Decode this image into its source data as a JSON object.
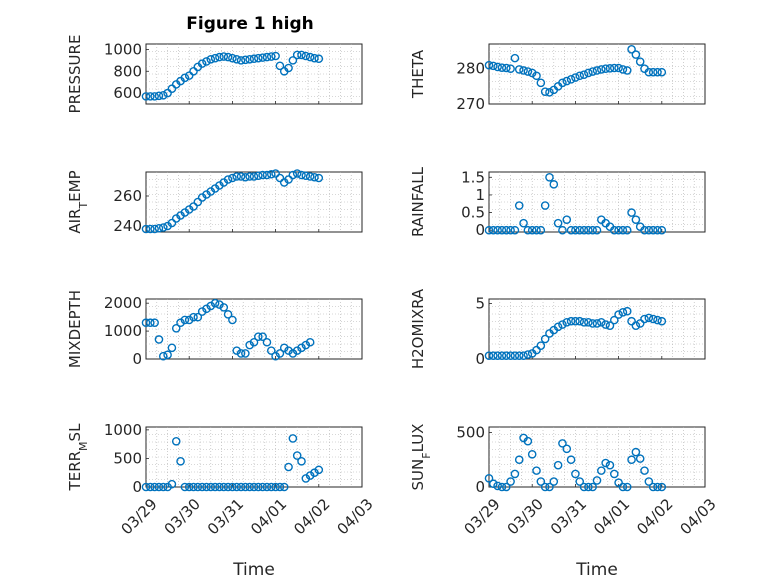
{
  "figure": {
    "title": "Figure 1 high"
  },
  "chart_data": [
    {
      "type": "scatter",
      "title": "Figure 1 high",
      "ylabel": "PRESSURE",
      "xlabel": "",
      "ylim": [
        500,
        1050
      ],
      "yticks": [
        600,
        800,
        1000
      ],
      "xlim": [
        "03/29",
        "04/03"
      ],
      "xticks": [
        "03/29",
        "03/30",
        "03/31",
        "04/01",
        "04/02",
        "04/03"
      ],
      "grid": true,
      "series": [
        {
          "x_days": [
            0.0,
            0.1,
            0.2,
            0.3,
            0.4,
            0.5,
            0.6,
            0.7,
            0.8,
            0.9,
            1.0,
            1.1,
            1.2,
            1.3,
            1.4,
            1.5,
            1.6,
            1.7,
            1.8,
            1.9,
            2.0,
            2.1,
            2.2,
            2.3,
            2.4,
            2.5,
            2.6,
            2.7,
            2.8,
            2.9,
            3.0,
            3.1,
            3.2,
            3.3,
            3.4,
            3.5,
            3.6,
            3.7,
            3.8,
            3.9,
            4.0,
            4.1,
            4.2,
            4.3,
            4.4,
            4.5,
            4.6,
            4.7,
            4.8,
            4.9,
            5.0
          ],
          "values": [
            570,
            570,
            570,
            575,
            580,
            600,
            640,
            680,
            710,
            740,
            760,
            800,
            840,
            870,
            890,
            910,
            920,
            930,
            935,
            930,
            920,
            910,
            900,
            905,
            910,
            915,
            920,
            925,
            930,
            935,
            940,
            850,
            800,
            830,
            900,
            950,
            950,
            940,
            930,
            920,
            915,
            null,
            null,
            null,
            null,
            null,
            null,
            null,
            null,
            null,
            null
          ]
        }
      ]
    },
    {
      "type": "scatter",
      "ylabel": "THETA",
      "xlabel": "",
      "ylim": [
        270,
        287
      ],
      "yticks": [
        270,
        280
      ],
      "grid": true,
      "series": [
        {
          "values": [
            281,
            280.8,
            280.5,
            280.3,
            280.2,
            280,
            283,
            279.8,
            279.5,
            279.2,
            278.8,
            278,
            276,
            273.5,
            273.3,
            274,
            275,
            276,
            276.5,
            277,
            277.5,
            278,
            278.3,
            278.8,
            279.2,
            279.5,
            279.8,
            280,
            280.1,
            280.2,
            280.2,
            279.8,
            279.5,
            285.5,
            284,
            282,
            280,
            279,
            279,
            279,
            279,
            null,
            null,
            null,
            null,
            null,
            null,
            null,
            null,
            null,
            null
          ]
        }
      ]
    },
    {
      "type": "scatter",
      "ylabel": "AIR_TEMP",
      "xlabel": "",
      "ylim": [
        236,
        276
      ],
      "yticks": [
        240,
        260
      ],
      "grid": true,
      "series": [
        {
          "values": [
            238,
            238,
            238,
            238.5,
            239,
            240,
            242,
            245,
            247,
            249,
            251,
            253,
            256,
            259,
            261,
            263,
            265,
            267,
            269,
            271,
            272,
            273,
            273,
            272.5,
            273,
            273,
            273.5,
            274,
            274,
            274.5,
            275,
            272,
            269,
            271,
            274,
            275,
            274,
            273.5,
            273,
            272.5,
            272,
            null,
            null,
            null,
            null,
            null,
            null,
            null,
            null,
            null,
            null
          ]
        }
      ]
    },
    {
      "type": "scatter",
      "ylabel": "RAINFALL",
      "xlabel": "",
      "ylim": [
        -0.05,
        1.65
      ],
      "yticks": [
        0,
        0.5,
        1,
        1.5
      ],
      "grid": true,
      "series": [
        {
          "values": [
            0,
            0,
            0,
            0,
            0,
            0,
            0,
            0.7,
            0.2,
            0,
            0,
            0,
            0,
            0.7,
            1.5,
            1.3,
            0.2,
            0,
            0.3,
            0,
            0,
            0,
            0,
            0,
            0,
            0,
            0.3,
            0.2,
            0.1,
            0,
            0,
            0,
            0,
            0.5,
            0.3,
            0.1,
            0,
            0,
            0,
            0,
            0,
            null,
            null,
            null,
            null,
            null,
            null,
            null,
            null,
            null,
            null
          ]
        }
      ]
    },
    {
      "type": "scatter",
      "ylabel": "MIXDEPTH",
      "xlabel": "",
      "ylim": [
        0,
        2150
      ],
      "yticks": [
        0,
        1000,
        2000
      ],
      "grid": true,
      "series": [
        {
          "values": [
            1300,
            1300,
            1300,
            700,
            100,
            150,
            400,
            1100,
            1300,
            1400,
            1400,
            1500,
            1500,
            1700,
            1800,
            1900,
            2000,
            1950,
            1850,
            1600,
            1400,
            300,
            200,
            200,
            500,
            600,
            800,
            800,
            600,
            300,
            100,
            200,
            400,
            300,
            200,
            300,
            400,
            500,
            600,
            null,
            null,
            null,
            null,
            null,
            null,
            null,
            null,
            null,
            null,
            null,
            null
          ]
        }
      ]
    },
    {
      "type": "scatter",
      "ylabel": "H2OMIXRA",
      "xlabel": "",
      "ylim": [
        0,
        5.4
      ],
      "yticks": [
        0,
        5
      ],
      "grid": true,
      "series": [
        {
          "values": [
            0.3,
            0.3,
            0.3,
            0.3,
            0.3,
            0.3,
            0.3,
            0.3,
            0.3,
            0.4,
            0.5,
            0.8,
            1.2,
            1.8,
            2.3,
            2.6,
            2.9,
            3.1,
            3.3,
            3.4,
            3.4,
            3.4,
            3.3,
            3.3,
            3.2,
            3.2,
            3.3,
            3.1,
            3.0,
            3.5,
            4.0,
            4.2,
            4.3,
            3.4,
            3.0,
            3.2,
            3.6,
            3.7,
            3.6,
            3.5,
            3.4,
            null,
            null,
            null,
            null,
            null,
            null,
            null,
            null,
            null,
            null
          ]
        }
      ]
    },
    {
      "type": "scatter",
      "ylabel": "TERR_MSL",
      "xlabel": "Time",
      "ylim": [
        0,
        1050
      ],
      "yticks": [
        0,
        500,
        1000
      ],
      "grid": true,
      "series": [
        {
          "values": [
            0,
            0,
            0,
            0,
            0,
            0,
            50,
            800,
            450,
            0,
            0,
            0,
            0,
            0,
            0,
            0,
            0,
            0,
            0,
            0,
            0,
            0,
            0,
            0,
            0,
            0,
            0,
            0,
            0,
            0,
            0,
            0,
            0,
            350,
            850,
            550,
            450,
            150,
            200,
            250,
            300,
            null,
            null,
            null,
            null,
            null,
            null,
            null,
            null,
            null,
            null
          ]
        }
      ]
    },
    {
      "type": "scatter",
      "ylabel": "SUN_FLUX",
      "xlabel": "Time",
      "ylim": [
        0,
        550
      ],
      "yticks": [
        0,
        500
      ],
      "grid": true,
      "series": [
        {
          "values": [
            80,
            30,
            10,
            0,
            0,
            50,
            120,
            250,
            450,
            420,
            300,
            150,
            50,
            0,
            0,
            50,
            200,
            400,
            350,
            250,
            120,
            50,
            0,
            0,
            0,
            60,
            150,
            220,
            200,
            120,
            40,
            0,
            0,
            250,
            320,
            260,
            150,
            50,
            0,
            0,
            0,
            null,
            null,
            null,
            null,
            null,
            null,
            null,
            null,
            null,
            null
          ]
        }
      ]
    }
  ]
}
